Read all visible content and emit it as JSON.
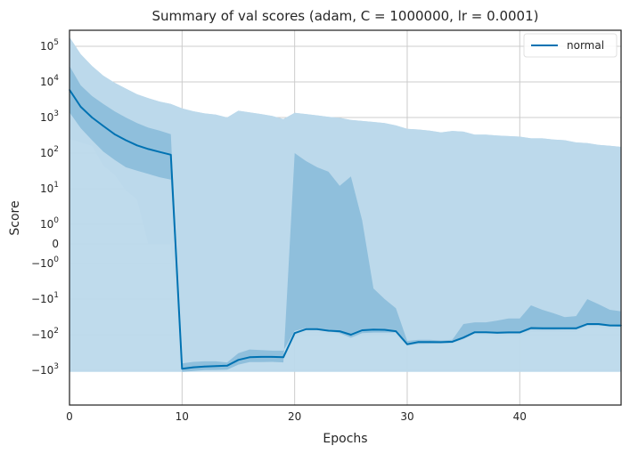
{
  "chart_data": {
    "type": "line",
    "title": "Summary of val scores (adam, C = 1000000, lr = 0.0001)",
    "xlabel": "Epochs",
    "ylabel": "Score",
    "xlim": [
      0,
      49
    ],
    "x_scale": "linear",
    "y_scale": "symlog",
    "x_ticks": [
      0,
      10,
      20,
      30,
      40
    ],
    "y_ticks": [
      {
        "value": 100000,
        "base": "10",
        "exp": "5"
      },
      {
        "value": 10000,
        "base": "10",
        "exp": "4"
      },
      {
        "value": 1000,
        "base": "10",
        "exp": "3"
      },
      {
        "value": 100,
        "base": "10",
        "exp": "2"
      },
      {
        "value": 10,
        "base": "10",
        "exp": "1"
      },
      {
        "value": 1,
        "base": "10",
        "exp": "0"
      },
      {
        "value": 0,
        "base": "0",
        "exp": ""
      },
      {
        "value": -1,
        "base": "−10",
        "exp": "0"
      },
      {
        "value": -10,
        "base": "−10",
        "exp": "1"
      },
      {
        "value": -100,
        "base": "−10",
        "exp": "2"
      },
      {
        "value": -1000,
        "base": "−10",
        "exp": "3"
      }
    ],
    "grid": true,
    "legend_position": "top-right",
    "x": [
      0,
      1,
      2,
      3,
      4,
      5,
      6,
      7,
      8,
      9,
      10,
      11,
      12,
      13,
      14,
      15,
      16,
      17,
      18,
      19,
      20,
      21,
      22,
      23,
      24,
      25,
      26,
      27,
      28,
      29,
      30,
      31,
      32,
      33,
      34,
      35,
      36,
      37,
      38,
      39,
      40,
      41,
      42,
      43,
      44,
      45,
      46,
      47,
      48,
      49
    ],
    "series": [
      {
        "name": "normal",
        "color": "#0072b2",
        "mean": [
          6000,
          2000,
          1000,
          580,
          340,
          230,
          165,
          130,
          108,
          90,
          -900,
          -820,
          -780,
          -760,
          -740,
          -510,
          -430,
          -420,
          -420,
          -430,
          -90,
          -70,
          -70,
          -77,
          -80,
          -100,
          -75,
          -72,
          -73,
          -80,
          -185,
          -160,
          -160,
          -162,
          -158,
          -120,
          -85,
          -85,
          -88,
          -86,
          -86,
          -65,
          -66,
          -66,
          -66,
          -66,
          -50,
          -50,
          -55,
          -55
        ],
        "inner_low": [
          1400,
          500,
          230,
          110,
          65,
          40,
          32,
          26,
          21,
          18,
          -640,
          -580,
          -560,
          -560,
          -600,
          -330,
          -260,
          -270,
          -280,
          -280,
          -78,
          -65,
          -70,
          -79,
          -90,
          -120,
          -90,
          -87,
          -87,
          -86,
          -200,
          -180,
          -178,
          -175,
          -170,
          -130,
          -90,
          -90,
          -94,
          -92,
          -92,
          -72,
          -73,
          -73,
          -72,
          -72,
          -55,
          -55,
          -58,
          -60
        ],
        "inner_high": [
          28000,
          8000,
          4000,
          2400,
          1500,
          1000,
          700,
          520,
          430,
          340,
          -1100,
          -1050,
          -990,
          -980,
          -960,
          -690,
          -590,
          -590,
          -580,
          -600,
          100,
          60,
          40,
          30,
          12,
          22,
          1.3,
          -5,
          -10,
          -18,
          -150,
          -140,
          -140,
          -145,
          -140,
          -50,
          -45,
          -45,
          -40,
          -35,
          -35,
          -15,
          -20,
          -25,
          -32,
          -30,
          -10,
          -14,
          -20,
          -22
        ],
        "outer_low": [
          250,
          200,
          160,
          45,
          25,
          9,
          5,
          0,
          0,
          0,
          -720,
          -680,
          -660,
          -660,
          -640,
          -420,
          -330,
          -340,
          -330,
          -280,
          -100,
          -88,
          -88,
          -96,
          -96,
          -130,
          -105,
          -100,
          -100,
          -106,
          -200,
          -186,
          -186,
          -184,
          -176,
          -140,
          -104,
          -104,
          -110,
          -110,
          -110,
          -84,
          -84,
          -84,
          -84,
          -84,
          -64,
          -64,
          -68,
          -70
        ],
        "outer_high": [
          180000,
          60000,
          28000,
          15000,
          9500,
          6500,
          4500,
          3500,
          2800,
          2400,
          1800,
          1500,
          1300,
          1200,
          1000,
          1550,
          1400,
          1250,
          1100,
          900,
          1350,
          1250,
          1150,
          1050,
          980,
          850,
          800,
          750,
          700,
          600,
          480,
          460,
          430,
          380,
          420,
          400,
          330,
          330,
          310,
          300,
          290,
          260,
          260,
          240,
          230,
          200,
          190,
          170,
          160,
          150
        ],
        "outer_bottom": [
          -1100,
          -1100,
          -1100,
          -1100,
          -1100,
          -1100,
          -1100,
          -1100,
          -1100,
          -1100,
          -1100,
          -1100,
          -1100,
          -1100,
          -1100,
          -1100,
          -1100,
          -1100,
          -1100,
          -1100,
          -1100,
          -1100,
          -1100,
          -1100,
          -1100,
          -1100,
          -1100,
          -1100,
          -1100,
          -1100,
          -1100,
          -1100,
          -1100,
          -1100,
          -1100,
          -1100,
          -1100,
          -1100,
          -1100,
          -1100,
          -1100,
          -1100,
          -1100,
          -1100,
          -1100,
          -1100,
          -1100,
          -1100,
          -1100,
          -1100
        ]
      }
    ],
    "colors": {
      "line": "#0072b2",
      "band_outer": "#bcd9eb",
      "band_inner": "#8fbfdc",
      "grid": "#cccccc",
      "frame": "#262626"
    }
  }
}
